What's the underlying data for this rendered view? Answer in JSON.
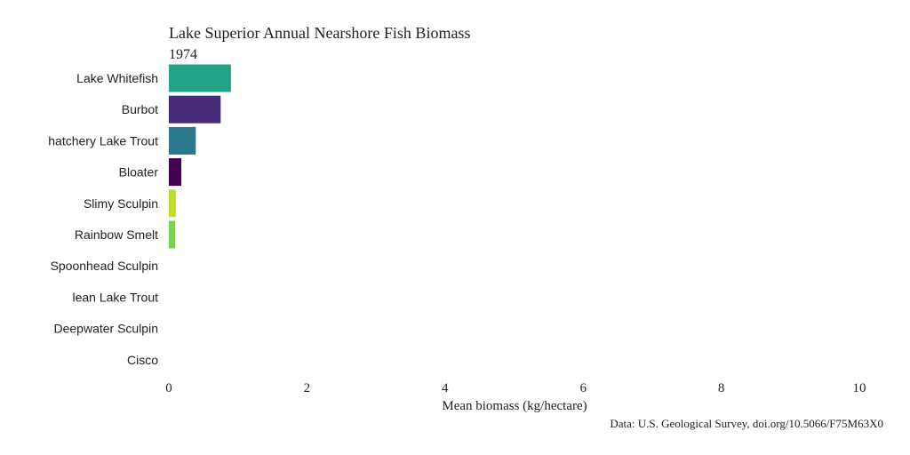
{
  "chart_data": {
    "type": "bar",
    "orientation": "horizontal",
    "title": "Lake Superior Annual Nearshore Fish Biomass",
    "subtitle": "1974",
    "xlabel": "Mean biomass (kg/hectare)",
    "ylabel": "",
    "caption": "Data: U.S. Geological Survey, doi.org/10.5066/F75M63X0",
    "xlim": [
      0,
      10
    ],
    "xticks": [
      0,
      2,
      4,
      6,
      8,
      10
    ],
    "grid": false,
    "legend": "none",
    "categories": [
      "Lake Whitefish",
      "Burbot",
      "hatchery Lake Trout",
      "Bloater",
      "Slimy Sculpin",
      "Rainbow Smelt",
      "Spoonhead Sculpin",
      "lean Lake Trout",
      "Deepwater Sculpin",
      "Cisco"
    ],
    "values": [
      0.9,
      0.75,
      0.39,
      0.18,
      0.1,
      0.09,
      0,
      0,
      0,
      0
    ],
    "colors": [
      "#22a386",
      "#472c7a",
      "#2a788e",
      "#440154",
      "#bddf26",
      "#7ad151",
      "#2c728e",
      "#3b528b",
      "#21918c",
      "#5ec962"
    ]
  }
}
